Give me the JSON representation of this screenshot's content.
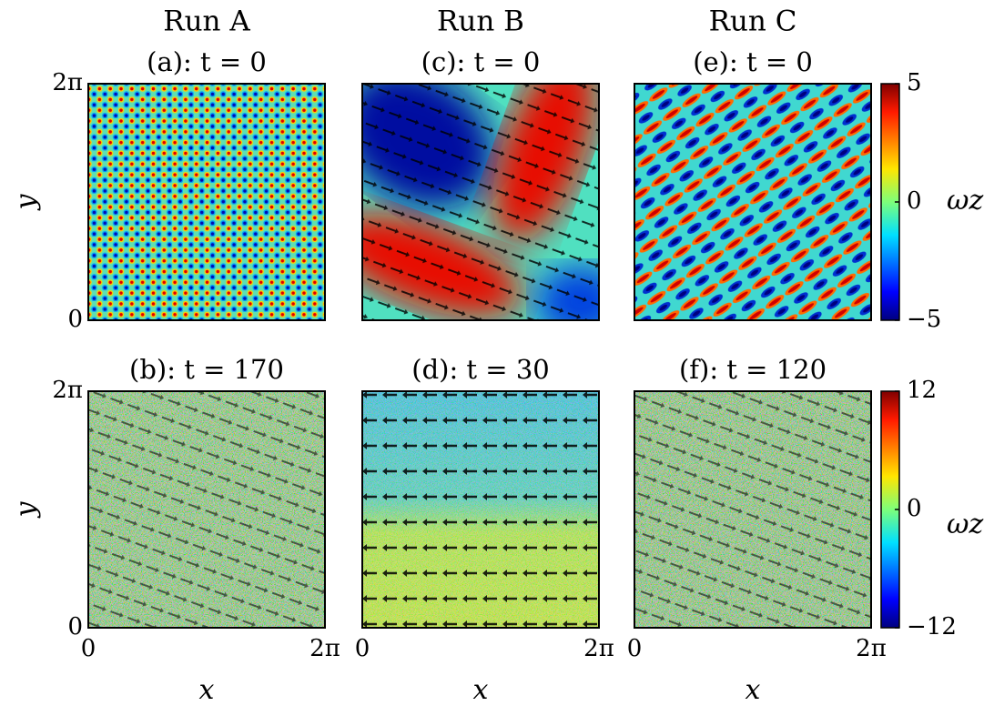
{
  "columns": [
    "Run A",
    "Run B",
    "Run C"
  ],
  "chart_data": [
    {
      "type": "heatmap",
      "title": "(a): t = 0",
      "xlim": [
        0,
        6.283
      ],
      "ylim": [
        0,
        6.283
      ],
      "yticks": [
        0,
        {
          "value": 6.283,
          "label": "2π"
        }
      ],
      "ylabel": "y"
    },
    {
      "type": "heatmap",
      "title": "(c): t = 0",
      "xlim": [
        0,
        6.283
      ],
      "ylim": [
        0,
        6.283
      ]
    },
    {
      "type": "heatmap",
      "title": "(e): t = 0",
      "xlim": [
        0,
        6.283
      ],
      "ylim": [
        0,
        6.283
      ]
    },
    {
      "type": "heatmap",
      "title": "(b): t = 170",
      "xlim": [
        0,
        6.283
      ],
      "ylim": [
        0,
        6.283
      ],
      "xticks": [
        0,
        {
          "value": 6.283,
          "label": "2π"
        }
      ],
      "yticks": [
        0,
        {
          "value": 6.283,
          "label": "2π"
        }
      ],
      "xlabel": "x",
      "ylabel": "y"
    },
    {
      "type": "heatmap",
      "title": "(d): t = 30",
      "xlim": [
        0,
        6.283
      ],
      "ylim": [
        0,
        6.283
      ],
      "xticks": [
        0,
        {
          "value": 6.283,
          "label": "2π"
        }
      ],
      "xlabel": "x"
    },
    {
      "type": "heatmap",
      "title": "(f): t = 120",
      "xlim": [
        0,
        6.283
      ],
      "ylim": [
        0,
        6.283
      ],
      "xticks": [
        0,
        {
          "value": 6.283,
          "label": "2π"
        }
      ],
      "xlabel": "x"
    }
  ],
  "colorbars": [
    {
      "label": "ωz",
      "clim": [
        -5,
        5
      ],
      "ticks": [
        5,
        0,
        {
          "value": -5,
          "label": "−5"
        }
      ]
    },
    {
      "label": "ωz",
      "clim": [
        -12,
        12
      ],
      "ticks": [
        12,
        0,
        {
          "value": -12,
          "label": "−12"
        }
      ]
    }
  ]
}
